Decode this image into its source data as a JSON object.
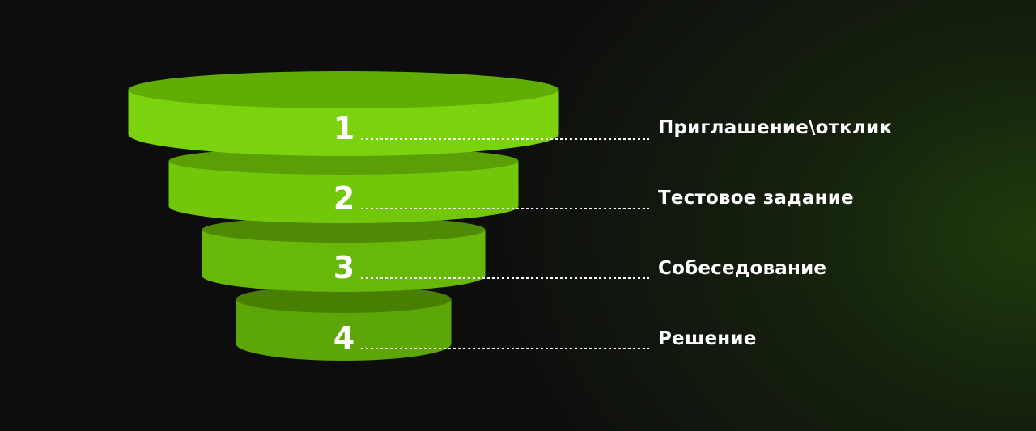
{
  "stages": [
    {
      "number": "1",
      "label": "Приглашение\\отклик",
      "top_color": "#62ad05",
      "side_color": "#7ad30c"
    },
    {
      "number": "2",
      "label": "Тестовое задание",
      "top_color": "#5aa004",
      "side_color": "#72c70b"
    },
    {
      "number": "3",
      "label": "Собеседование",
      "top_color": "#4e8a03",
      "side_color": "#68b809"
    },
    {
      "number": "4",
      "label": "Решение",
      "top_color": "#487f03",
      "side_color": "#5da607"
    }
  ]
}
